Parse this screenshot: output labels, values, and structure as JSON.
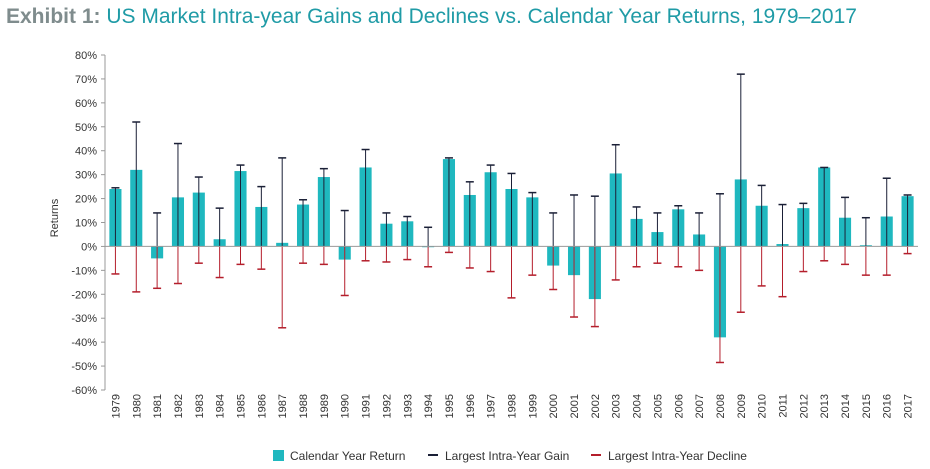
{
  "title": {
    "prefix": "Exhibit 1:",
    "text": "US Market Intra-year Gains and Declines vs. Calendar Year Returns, 1979–2017"
  },
  "colors": {
    "bar": "#1fb8bf",
    "gain": "#1a1f36",
    "decline": "#b41e2b",
    "axis": "#999999"
  },
  "chart_data": {
    "type": "bar",
    "ylabel": "Returns",
    "ylim": [
      -60,
      80
    ],
    "yticks": [
      80,
      70,
      60,
      50,
      40,
      30,
      20,
      10,
      0,
      -10,
      -20,
      -30,
      -40,
      -50,
      -60
    ],
    "ytick_labels": [
      "80%",
      "70%",
      "60%",
      "50%",
      "40%",
      "30%",
      "20%",
      "10%",
      "0%",
      "-10%",
      "-20%",
      "-30%",
      "-40%",
      "-50%",
      "-60%"
    ],
    "grid": false,
    "legend_position": "bottom",
    "categories": [
      "1979",
      "1980",
      "1981",
      "1982",
      "1983",
      "1984",
      "1985",
      "1986",
      "1987",
      "1988",
      "1989",
      "1990",
      "1991",
      "1992",
      "1993",
      "1994",
      "1995",
      "1996",
      "1997",
      "1998",
      "1999",
      "2000",
      "2001",
      "2002",
      "2003",
      "2004",
      "2005",
      "2006",
      "2007",
      "2008",
      "2009",
      "2010",
      "2011",
      "2012",
      "2013",
      "2014",
      "2015",
      "2016",
      "2017"
    ],
    "series": [
      {
        "name": "Calendar Year Return",
        "type": "bar",
        "values": [
          24,
          32,
          -5,
          20.5,
          22.5,
          3,
          31.5,
          16.5,
          1.5,
          17.5,
          29,
          -5.5,
          33,
          9.5,
          10.5,
          0,
          36.5,
          21.5,
          31,
          24,
          20.5,
          -8,
          -12,
          -22,
          30.5,
          11.5,
          6,
          15.5,
          5,
          -38,
          28,
          17,
          1,
          16,
          33,
          12,
          0.5,
          12.5,
          21
        ]
      },
      {
        "name": "Largest Intra-Year Gain",
        "type": "errorbar",
        "values": [
          24.5,
          52,
          14,
          43,
          29,
          16,
          34,
          25,
          37,
          19.5,
          32.5,
          15,
          40.5,
          14,
          12.5,
          8,
          37,
          27,
          34,
          30.5,
          22.5,
          14,
          21.5,
          21,
          42.5,
          16.5,
          14,
          17,
          14,
          22,
          72,
          25.5,
          17.5,
          18,
          33,
          20.5,
          12,
          28.5,
          21.5
        ]
      },
      {
        "name": "Largest Intra-Year Decline",
        "type": "errorbar",
        "values": [
          -11.5,
          -19,
          -17.5,
          -15.5,
          -7,
          -13,
          -7.5,
          -9.5,
          -34,
          -7,
          -7.5,
          -20.5,
          -6,
          -6.5,
          -5.5,
          -8.5,
          -2.5,
          -9,
          -10.5,
          -21.5,
          -12,
          -18,
          -29.5,
          -33.5,
          -14,
          -8.5,
          -7,
          -8.5,
          -10,
          -48.5,
          -27.5,
          -16.5,
          -21,
          -10.5,
          -6,
          -7.5,
          -12,
          -12,
          -3
        ]
      }
    ]
  }
}
